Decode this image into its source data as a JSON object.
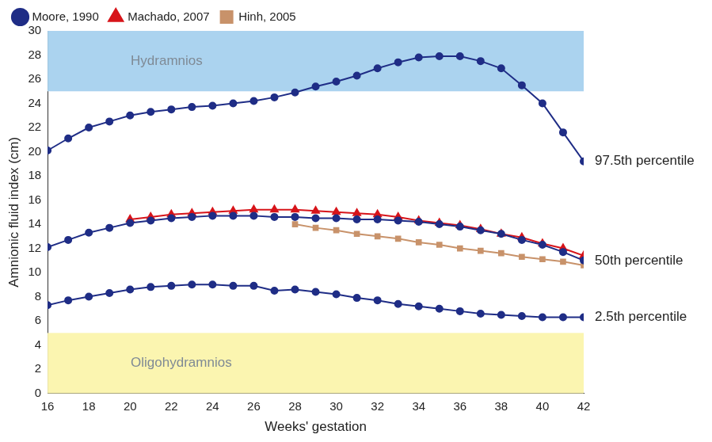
{
  "chart_data": {
    "type": "line",
    "x_label": "Weeks' gestation",
    "y_label": "Amnionic fluid index (cm)",
    "x": [
      16,
      17,
      18,
      19,
      20,
      21,
      22,
      23,
      24,
      25,
      26,
      27,
      28,
      29,
      30,
      31,
      32,
      33,
      34,
      35,
      36,
      37,
      38,
      39,
      40,
      41,
      42
    ],
    "series": [
      {
        "name": "Moore, 1990",
        "label": "97.5th percentile",
        "color": "#1f2d86",
        "marker": "circle",
        "line_style": "solid",
        "values": [
          20.1,
          21.1,
          22.0,
          22.5,
          23.0,
          23.3,
          23.5,
          23.7,
          23.8,
          24.0,
          24.2,
          24.5,
          24.9,
          25.4,
          25.8,
          26.3,
          26.9,
          27.4,
          27.8,
          27.9,
          27.9,
          27.5,
          26.9,
          25.5,
          24.0,
          21.6,
          19.2
        ]
      },
      {
        "name": "Moore, 1990",
        "label": "50th percentile",
        "color": "#1f2d86",
        "marker": "circle",
        "line_style": "solid",
        "values": [
          12.1,
          12.7,
          13.3,
          13.7,
          14.1,
          14.3,
          14.5,
          14.6,
          14.7,
          14.7,
          14.7,
          14.6,
          14.6,
          14.5,
          14.5,
          14.4,
          14.4,
          14.3,
          14.2,
          14.0,
          13.8,
          13.5,
          13.2,
          12.7,
          12.3,
          11.7,
          11.0
        ]
      },
      {
        "name": "Moore, 1990",
        "label": "2.5th percentile",
        "color": "#1f2d86",
        "marker": "circle",
        "line_style": "solid",
        "values": [
          7.3,
          7.7,
          8.0,
          8.3,
          8.6,
          8.8,
          8.9,
          9.0,
          9.0,
          8.9,
          8.9,
          8.5,
          8.6,
          8.4,
          8.2,
          7.9,
          7.7,
          7.4,
          7.2,
          7.0,
          6.8,
          6.6,
          6.5,
          6.4,
          6.3,
          6.3,
          6.3
        ]
      },
      {
        "name": "Machado, 2007",
        "color": "#d7141a",
        "marker": "triangle",
        "line_style": "solid",
        "values": [
          null,
          null,
          null,
          null,
          14.4,
          14.6,
          14.8,
          14.9,
          15.0,
          15.1,
          15.2,
          15.2,
          15.2,
          15.1,
          15.0,
          14.9,
          14.8,
          14.6,
          14.3,
          14.1,
          13.9,
          13.6,
          13.2,
          12.9,
          12.4,
          12.0,
          11.4
        ]
      },
      {
        "name": "Hinh, 2005",
        "color": "#c8926a",
        "marker": "square",
        "line_style": "solid",
        "values": [
          null,
          null,
          null,
          null,
          null,
          null,
          null,
          null,
          null,
          null,
          null,
          null,
          14.0,
          13.7,
          13.5,
          13.2,
          13.0,
          12.8,
          12.5,
          12.3,
          12.0,
          11.8,
          11.6,
          11.3,
          11.1,
          10.9,
          10.6
        ]
      }
    ],
    "bands": [
      {
        "label": "Hydramnios",
        "range": [
          25,
          30
        ],
        "color": "#abd3ef"
      },
      {
        "label": "Oligohydramnios",
        "range": [
          0,
          5
        ],
        "color": "#fbf5b0"
      }
    ],
    "xlim": [
      16,
      42
    ],
    "xticks": [
      16,
      18,
      20,
      22,
      24,
      26,
      28,
      30,
      32,
      34,
      36,
      38,
      40,
      42
    ],
    "ylim": [
      0,
      30
    ],
    "yticks": [
      0,
      2,
      4,
      6,
      8,
      10,
      12,
      14,
      16,
      18,
      20,
      22,
      24,
      26,
      28,
      30
    ],
    "grid": false,
    "legend": "top-left"
  }
}
